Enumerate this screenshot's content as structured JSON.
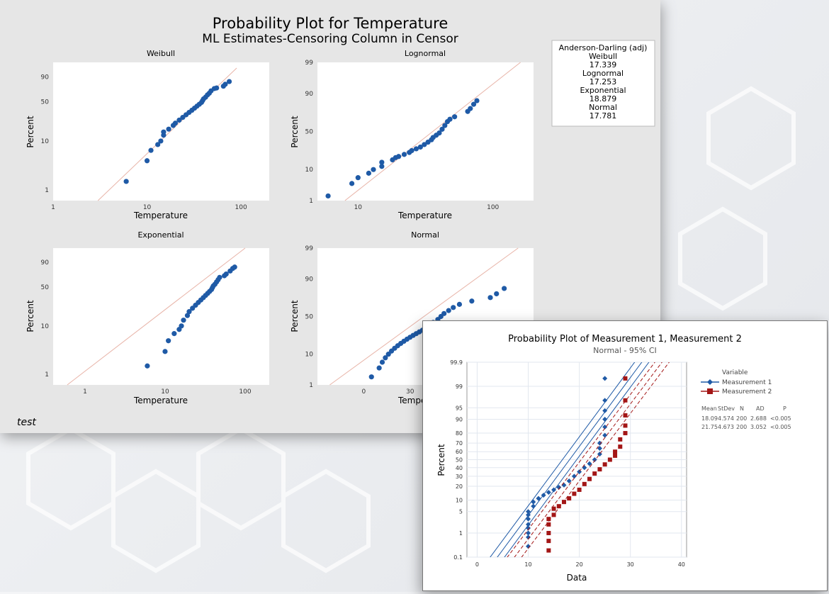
{
  "colors": {
    "series_blue": "#1f5aa6",
    "series_red": "#a31616",
    "panel_bg": "#e6e6e6",
    "fit_line": "#e8b4a8"
  },
  "main": {
    "title": "Probability Plot for Temperature",
    "subtitle": "ML Estimates-Censoring Column in Censor",
    "footer": "test",
    "legend": {
      "header": "Anderson-Darling (adj)",
      "items": [
        {
          "name": "Weibull",
          "value": "17.339"
        },
        {
          "name": "Lognormal",
          "value": "17.253"
        },
        {
          "name": "Exponential",
          "value": "18.879"
        },
        {
          "name": "Normal",
          "value": "17.781"
        }
      ]
    }
  },
  "inset": {
    "title": "Probability Plot of Measurement 1, Measurement 2",
    "subtitle": "Normal - 95% CI",
    "legend": {
      "header": "Variable",
      "items": [
        {
          "name": "Measurement 1"
        },
        {
          "name": "Measurement 2"
        }
      ]
    },
    "stats": {
      "headers": [
        "Mean",
        "StDev",
        "N",
        "AD",
        "P"
      ],
      "rows": [
        [
          "18.09",
          "4.574",
          "200",
          "2.688",
          "<0.005"
        ],
        [
          "21.75",
          "4.673",
          "200",
          "3.052",
          "<0.005"
        ]
      ]
    }
  },
  "chart_data": [
    {
      "type": "scatter",
      "title": "Weibull",
      "xlabel": "Temperature",
      "ylabel": "Percent",
      "xscale": "log",
      "xlim": [
        1,
        200
      ],
      "xticks": [
        "1",
        "10",
        "100"
      ],
      "yticks": [
        "1",
        "10",
        "50",
        "90"
      ],
      "ylim": [
        0.6,
        99
      ],
      "points": [
        [
          6,
          1.5
        ],
        [
          10,
          4
        ],
        [
          11,
          6.5
        ],
        [
          13,
          8.5
        ],
        [
          14,
          10
        ],
        [
          15,
          13
        ],
        [
          15,
          15
        ],
        [
          17,
          17
        ],
        [
          19,
          20
        ],
        [
          20,
          22
        ],
        [
          22,
          25
        ],
        [
          24,
          28
        ],
        [
          26,
          31
        ],
        [
          28,
          34
        ],
        [
          30,
          37
        ],
        [
          32,
          40
        ],
        [
          34,
          43
        ],
        [
          36,
          46
        ],
        [
          38,
          49
        ],
        [
          39,
          52
        ],
        [
          40,
          55
        ],
        [
          42,
          58
        ],
        [
          44,
          62
        ],
        [
          46,
          65
        ],
        [
          48,
          69
        ],
        [
          52,
          73
        ],
        [
          55,
          74
        ],
        [
          65,
          77
        ],
        [
          68,
          80
        ],
        [
          75,
          84
        ]
      ],
      "fit": [
        [
          3,
          0.6
        ],
        [
          90,
          97
        ]
      ]
    },
    {
      "type": "scatter",
      "title": "Lognormal",
      "xlabel": "Temperature",
      "ylabel": "Percent",
      "xscale": "log",
      "xlim": [
        5,
        200
      ],
      "xticks": [
        "10",
        "100"
      ],
      "yticks": [
        "1",
        "10",
        "50",
        "90",
        "99"
      ],
      "ylim": [
        1,
        99
      ],
      "points": [
        [
          6,
          1.5
        ],
        [
          9,
          4
        ],
        [
          10,
          6
        ],
        [
          12,
          8
        ],
        [
          13,
          10
        ],
        [
          15,
          12
        ],
        [
          15,
          15
        ],
        [
          18,
          17
        ],
        [
          19,
          19
        ],
        [
          20,
          20
        ],
        [
          22,
          22
        ],
        [
          24,
          24
        ],
        [
          25,
          26
        ],
        [
          27,
          28
        ],
        [
          29,
          30
        ],
        [
          31,
          33
        ],
        [
          33,
          36
        ],
        [
          35,
          39
        ],
        [
          36,
          42
        ],
        [
          38,
          45
        ],
        [
          40,
          48
        ],
        [
          42,
          53
        ],
        [
          44,
          58
        ],
        [
          46,
          63
        ],
        [
          48,
          66
        ],
        [
          52,
          69
        ],
        [
          65,
          75
        ],
        [
          68,
          78
        ],
        [
          72,
          82
        ],
        [
          76,
          85
        ]
      ],
      "fit": [
        [
          8,
          1
        ],
        [
          160,
          99
        ]
      ]
    },
    {
      "type": "scatter",
      "title": "Exponential",
      "xlabel": "Temperature",
      "ylabel": "Percent",
      "xscale": "log",
      "xlim": [
        0.4,
        200
      ],
      "xticks": [
        "1",
        "10",
        "100"
      ],
      "yticks": [
        "1",
        "10",
        "50",
        "90"
      ],
      "ylim": [
        0.6,
        99
      ],
      "points": [
        [
          6,
          1.5
        ],
        [
          10,
          3
        ],
        [
          11,
          5
        ],
        [
          13,
          7
        ],
        [
          15,
          8.5
        ],
        [
          16,
          10
        ],
        [
          17,
          13
        ],
        [
          19,
          16
        ],
        [
          20,
          19
        ],
        [
          22,
          22
        ],
        [
          24,
          25
        ],
        [
          26,
          28
        ],
        [
          28,
          31
        ],
        [
          30,
          34
        ],
        [
          32,
          37
        ],
        [
          34,
          40
        ],
        [
          36,
          43
        ],
        [
          38,
          46
        ],
        [
          39,
          49
        ],
        [
          40,
          52
        ],
        [
          42,
          55
        ],
        [
          44,
          59
        ],
        [
          46,
          63
        ],
        [
          48,
          67
        ],
        [
          55,
          70
        ],
        [
          58,
          73
        ],
        [
          65,
          78
        ],
        [
          70,
          82
        ],
        [
          74,
          84
        ]
      ],
      "fit": [
        [
          0.6,
          0.6
        ],
        [
          100,
          99
        ]
      ]
    },
    {
      "type": "scatter",
      "title": "Normal",
      "xlabel": "Temperature",
      "ylabel": "Percent",
      "xlim": [
        -30,
        110
      ],
      "xticks": [
        "0",
        "30"
      ],
      "yticks": [
        "1",
        "10",
        "50",
        "90",
        "99"
      ],
      "ylim": [
        1,
        99
      ],
      "points": [
        [
          5,
          2
        ],
        [
          10,
          4
        ],
        [
          12,
          6
        ],
        [
          14,
          8
        ],
        [
          16,
          10
        ],
        [
          18,
          12
        ],
        [
          20,
          14
        ],
        [
          22,
          16
        ],
        [
          24,
          18
        ],
        [
          26,
          20
        ],
        [
          28,
          22
        ],
        [
          30,
          24
        ],
        [
          32,
          26
        ],
        [
          34,
          28
        ],
        [
          36,
          30
        ],
        [
          38,
          32
        ],
        [
          40,
          35
        ],
        [
          42,
          38
        ],
        [
          45,
          42
        ],
        [
          48,
          46
        ],
        [
          50,
          50
        ],
        [
          52,
          54
        ],
        [
          55,
          58
        ],
        [
          58,
          62
        ],
        [
          62,
          66
        ],
        [
          70,
          70
        ],
        [
          82,
          74
        ],
        [
          86,
          78
        ],
        [
          91,
          83
        ]
      ],
      "fit": [
        [
          -22,
          1
        ],
        [
          100,
          99
        ]
      ]
    },
    {
      "type": "scatter",
      "title": "Probability Plot of Measurement 1, Measurement 2",
      "subtitle": "Normal - 95% CI",
      "xlabel": "Data",
      "ylabel": "Percent",
      "xlim": [
        -2,
        41
      ],
      "xticks": [
        "0",
        "10",
        "20",
        "30",
        "40"
      ],
      "yticks": [
        "0.1",
        "1",
        "5",
        "10",
        "20",
        "30",
        "40",
        "50",
        "60",
        "70",
        "80",
        "90",
        "95",
        "99",
        "99.9"
      ],
      "ylim": [
        0.1,
        99.9
      ],
      "series": [
        {
          "name": "Measurement 1",
          "mean": 18.09,
          "sd": 4.574,
          "x": [
            10,
            10,
            10,
            10,
            10,
            10,
            10,
            10,
            11,
            11,
            12,
            13,
            14,
            15,
            16,
            17,
            18,
            19,
            20,
            21,
            22,
            23,
            24,
            24,
            24,
            25,
            25,
            25,
            25,
            25,
            25
          ],
          "y": [
            0.3,
            0.7,
            1,
            1.5,
            2,
            3,
            4,
            5,
            7,
            9,
            11,
            13,
            15,
            17,
            19,
            21,
            25,
            30,
            35,
            40,
            45,
            50,
            57,
            64,
            70,
            78,
            85,
            90,
            94,
            97,
            99.5
          ]
        },
        {
          "name": "Measurement 2",
          "mean": 21.75,
          "sd": 4.673,
          "x": [
            14,
            14,
            14,
            14,
            14,
            15,
            15,
            16,
            17,
            18,
            19,
            20,
            21,
            22,
            23,
            24,
            25,
            26,
            27,
            27,
            28,
            28,
            29,
            29,
            29,
            29,
            29
          ],
          "y": [
            0.2,
            0.5,
            1,
            2,
            3,
            4,
            6,
            7,
            9,
            11,
            14,
            17,
            22,
            27,
            33,
            38,
            44,
            50,
            55,
            60,
            66,
            74,
            80,
            86,
            92,
            97,
            99.5
          ]
        }
      ]
    }
  ]
}
